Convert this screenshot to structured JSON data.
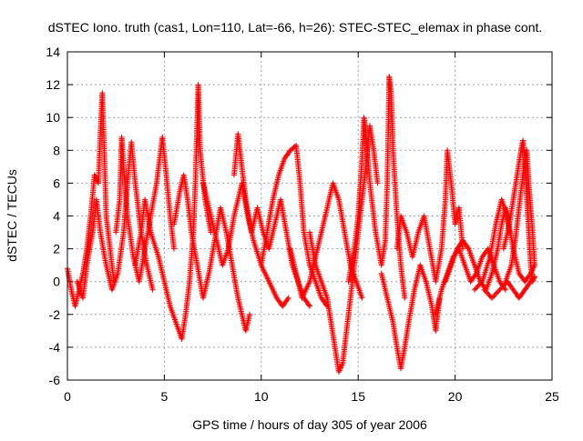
{
  "chart_data": {
    "type": "scatter",
    "title": "dSTEC Iono. truth (cas1, Lon=110, Lat=-66, h=26): STEC-STEC_elemax in phase cont.",
    "xlabel": "GPS time / hours of day 305 of year 2006",
    "ylabel": "dSTEC  / TECUs",
    "xlim": [
      0,
      25
    ],
    "ylim": [
      -6,
      14
    ],
    "xticks": [
      0,
      5,
      10,
      15,
      20,
      25
    ],
    "yticks": [
      -6,
      -4,
      -2,
      0,
      2,
      4,
      6,
      8,
      10,
      12,
      14
    ],
    "grid": true,
    "marker": "+",
    "series": [
      {
        "name": "dSTEC",
        "color": "#ff0000",
        "arcs": [
          [
            [
              0.0,
              0.8
            ],
            [
              0.2,
              -0.5
            ],
            [
              0.4,
              -1.5
            ],
            [
              0.6,
              -0.5
            ],
            [
              0.8,
              0.5
            ],
            [
              1.0,
              2.0
            ],
            [
              1.2,
              4.0
            ],
            [
              1.4,
              6.5
            ],
            [
              1.6,
              6.0
            ],
            [
              1.7,
              9.0
            ],
            [
              1.8,
              11.5
            ],
            [
              1.9,
              8.0
            ],
            [
              2.0,
              4.0
            ],
            [
              2.2,
              2.0
            ],
            [
              2.4,
              0.0
            ]
          ],
          [
            [
              0.5,
              0.0
            ],
            [
              0.8,
              -1.0
            ],
            [
              1.0,
              1.0
            ],
            [
              1.3,
              3.0
            ],
            [
              1.5,
              5.0
            ],
            [
              1.7,
              3.0
            ],
            [
              2.0,
              1.0
            ],
            [
              2.3,
              -0.5
            ],
            [
              2.6,
              0.5
            ],
            [
              2.9,
              3.0
            ],
            [
              3.1,
              6.0
            ],
            [
              3.3,
              8.5
            ],
            [
              3.5,
              6.0
            ],
            [
              3.8,
              3.0
            ],
            [
              4.1,
              1.0
            ],
            [
              4.4,
              -0.5
            ]
          ],
          [
            [
              2.5,
              3.0
            ],
            [
              2.7,
              5.0
            ],
            [
              2.8,
              8.8
            ],
            [
              2.9,
              7.0
            ],
            [
              3.1,
              4.0
            ],
            [
              3.4,
              1.5
            ],
            [
              3.7,
              0.0
            ],
            [
              4.0,
              2.0
            ],
            [
              4.3,
              4.0
            ],
            [
              4.6,
              6.0
            ],
            [
              4.9,
              8.8
            ],
            [
              5.1,
              6.5
            ],
            [
              5.3,
              4.0
            ],
            [
              5.5,
              2.0
            ]
          ],
          [
            [
              3.5,
              1.0
            ],
            [
              3.8,
              3.0
            ],
            [
              4.0,
              5.0
            ],
            [
              4.3,
              3.0
            ],
            [
              4.7,
              1.5
            ],
            [
              5.0,
              0.0
            ],
            [
              5.3,
              -1.5
            ],
            [
              5.6,
              -2.5
            ],
            [
              5.9,
              -3.5
            ],
            [
              6.1,
              -2.0
            ],
            [
              6.3,
              0.0
            ],
            [
              6.5,
              3.0
            ],
            [
              6.6,
              6.0
            ],
            [
              6.7,
              10.0
            ],
            [
              6.75,
              12.0
            ],
            [
              6.85,
              8.0
            ],
            [
              7.1,
              5.0
            ],
            [
              7.4,
              3.0
            ]
          ],
          [
            [
              5.5,
              3.5
            ],
            [
              5.8,
              5.5
            ],
            [
              6.0,
              6.5
            ],
            [
              6.2,
              5.0
            ],
            [
              6.4,
              3.0
            ],
            [
              6.7,
              1.0
            ],
            [
              7.0,
              -1.0
            ],
            [
              7.3,
              0.5
            ],
            [
              7.6,
              2.5
            ],
            [
              7.9,
              4.5
            ],
            [
              8.2,
              3.0
            ],
            [
              8.5,
              1.0
            ],
            [
              8.8,
              -1.0
            ],
            [
              9.0,
              -2.0
            ],
            [
              9.2,
              -3.0
            ],
            [
              9.4,
              -2.0
            ]
          ],
          [
            [
              7.0,
              6.0
            ],
            [
              7.3,
              4.5
            ],
            [
              7.7,
              2.5
            ],
            [
              8.0,
              1.0
            ],
            [
              8.3,
              2.0
            ],
            [
              8.6,
              4.0
            ],
            [
              9.0,
              6.0
            ],
            [
              9.3,
              4.0
            ],
            [
              9.6,
              2.5
            ],
            [
              10.0,
              1.0
            ],
            [
              10.4,
              0.0
            ],
            [
              10.8,
              -1.0
            ],
            [
              11.1,
              -1.5
            ],
            [
              11.4,
              -1.0
            ]
          ],
          [
            [
              8.6,
              6.5
            ],
            [
              8.8,
              9.0
            ],
            [
              9.0,
              7.0
            ],
            [
              9.2,
              5.0
            ],
            [
              9.5,
              3.0
            ],
            [
              9.8,
              4.5
            ],
            [
              10.1,
              3.0
            ],
            [
              10.4,
              2.0
            ],
            [
              10.7,
              3.5
            ],
            [
              11.0,
              5.0
            ],
            [
              11.3,
              3.0
            ],
            [
              11.6,
              1.0
            ],
            [
              11.9,
              0.0
            ],
            [
              12.2,
              -1.0
            ],
            [
              12.5,
              -1.5
            ]
          ],
          [
            [
              10.0,
              1.0
            ],
            [
              10.3,
              3.0
            ],
            [
              10.6,
              5.0
            ],
            [
              10.9,
              6.5
            ],
            [
              11.2,
              7.5
            ],
            [
              11.5,
              8.0
            ],
            [
              11.8,
              8.3
            ],
            [
              12.0,
              6.0
            ],
            [
              12.2,
              3.0
            ],
            [
              12.5,
              1.0
            ],
            [
              12.8,
              0.0
            ],
            [
              13.1,
              -1.0
            ],
            [
              13.4,
              -1.5
            ]
          ],
          [
            [
              11.5,
              2.0
            ],
            [
              11.8,
              0.5
            ],
            [
              12.1,
              -1.0
            ],
            [
              12.5,
              0.0
            ],
            [
              12.8,
              1.5
            ],
            [
              13.1,
              3.0
            ],
            [
              13.4,
              4.5
            ],
            [
              13.7,
              6.0
            ],
            [
              14.0,
              5.0
            ],
            [
              14.3,
              3.0
            ],
            [
              14.6,
              1.0
            ],
            [
              14.9,
              0.0
            ],
            [
              15.2,
              -1.0
            ]
          ],
          [
            [
              12.5,
              3.0
            ],
            [
              12.8,
              1.0
            ],
            [
              13.1,
              0.0
            ],
            [
              13.4,
              -1.0
            ],
            [
              13.6,
              -2.5
            ],
            [
              13.8,
              -4.0
            ],
            [
              14.0,
              -5.5
            ],
            [
              14.2,
              -5.0
            ],
            [
              14.4,
              -3.0
            ],
            [
              14.6,
              -1.0
            ],
            [
              14.8,
              1.0
            ],
            [
              15.0,
              3.0
            ],
            [
              15.2,
              5.0
            ],
            [
              15.4,
              7.0
            ],
            [
              15.6,
              9.5
            ],
            [
              15.8,
              8.0
            ],
            [
              16.0,
              6.0
            ]
          ],
          [
            [
              14.5,
              0.0
            ],
            [
              14.8,
              2.0
            ],
            [
              15.0,
              4.0
            ],
            [
              15.2,
              7.5
            ],
            [
              15.3,
              10.0
            ],
            [
              15.4,
              9.0
            ],
            [
              15.6,
              6.0
            ],
            [
              15.9,
              3.0
            ],
            [
              16.2,
              1.0
            ],
            [
              16.4,
              2.5
            ],
            [
              16.5,
              6.0
            ],
            [
              16.55,
              9.0
            ],
            [
              16.6,
              12.5
            ],
            [
              16.7,
              11.5
            ],
            [
              16.8,
              8.0
            ],
            [
              17.0,
              4.0
            ],
            [
              17.2,
              1.0
            ],
            [
              17.4,
              -1.0
            ]
          ],
          [
            [
              16.2,
              0.5
            ],
            [
              16.5,
              -1.0
            ],
            [
              16.8,
              -2.5
            ],
            [
              17.0,
              -4.0
            ],
            [
              17.2,
              -5.3
            ],
            [
              17.4,
              -4.0
            ],
            [
              17.6,
              -2.5
            ],
            [
              17.9,
              -0.5
            ],
            [
              18.2,
              1.0
            ],
            [
              18.5,
              0.0
            ],
            [
              18.8,
              -1.5
            ],
            [
              19.0,
              -3.0
            ],
            [
              19.2,
              -1.0
            ]
          ],
          [
            [
              17.0,
              2.0
            ],
            [
              17.2,
              4.0
            ],
            [
              17.5,
              3.0
            ],
            [
              17.8,
              1.5
            ],
            [
              18.1,
              3.0
            ],
            [
              18.4,
              4.0
            ],
            [
              18.7,
              2.0
            ],
            [
              19.0,
              0.0
            ],
            [
              19.3,
              2.0
            ],
            [
              19.5,
              5.0
            ],
            [
              19.6,
              8.0
            ],
            [
              19.8,
              6.0
            ],
            [
              20.0,
              3.5
            ],
            [
              20.2,
              4.5
            ],
            [
              20.4,
              2.0
            ]
          ],
          [
            [
              19.0,
              -2.0
            ],
            [
              19.3,
              -0.5
            ],
            [
              19.6,
              0.5
            ],
            [
              19.9,
              1.5
            ],
            [
              20.2,
              2.0
            ],
            [
              20.5,
              1.0
            ],
            [
              20.8,
              0.0
            ],
            [
              21.1,
              0.5
            ],
            [
              21.4,
              1.5
            ],
            [
              21.7,
              2.0
            ],
            [
              22.0,
              1.0
            ],
            [
              22.3,
              0.0
            ],
            [
              22.6,
              -0.5
            ]
          ],
          [
            [
              19.5,
              0.0
            ],
            [
              19.8,
              1.0
            ],
            [
              20.1,
              2.0
            ],
            [
              20.4,
              2.5
            ],
            [
              20.7,
              2.0
            ],
            [
              21.0,
              1.0
            ],
            [
              21.3,
              0.0
            ],
            [
              21.6,
              -0.5
            ],
            [
              21.9,
              0.5
            ],
            [
              22.2,
              2.0
            ],
            [
              22.4,
              3.5
            ],
            [
              22.6,
              4.5
            ],
            [
              22.8,
              3.0
            ]
          ],
          [
            [
              21.0,
              -0.5
            ],
            [
              21.4,
              0.0
            ],
            [
              21.8,
              1.5
            ],
            [
              22.1,
              3.5
            ],
            [
              22.4,
              5.0
            ],
            [
              22.7,
              4.0
            ],
            [
              23.0,
              2.0
            ],
            [
              23.3,
              0.5
            ],
            [
              23.6,
              0.0
            ],
            [
              23.9,
              0.5
            ],
            [
              24.1,
              1.0
            ]
          ],
          [
            [
              21.5,
              -0.5
            ],
            [
              21.9,
              -1.0
            ],
            [
              22.3,
              -0.5
            ],
            [
              22.7,
              0.0
            ],
            [
              23.0,
              -0.5
            ],
            [
              23.3,
              -1.0
            ],
            [
              23.6,
              -0.5
            ],
            [
              23.9,
              0.0
            ],
            [
              24.1,
              0.3
            ]
          ],
          [
            [
              22.5,
              2.0
            ],
            [
              22.8,
              3.5
            ],
            [
              23.0,
              5.0
            ],
            [
              23.2,
              6.5
            ],
            [
              23.4,
              8.0
            ],
            [
              23.5,
              8.6
            ],
            [
              23.6,
              7.5
            ],
            [
              23.7,
              5.0
            ],
            [
              23.8,
              3.0
            ],
            [
              23.9,
              1.0
            ],
            [
              24.0,
              0.0
            ],
            [
              24.1,
              0.3
            ]
          ],
          [
            [
              22.6,
              0.0
            ],
            [
              22.9,
              1.0
            ],
            [
              23.1,
              2.5
            ],
            [
              23.3,
              4.5
            ],
            [
              23.5,
              6.5
            ],
            [
              23.7,
              8.0
            ],
            [
              23.8,
              6.0
            ],
            [
              24.0,
              3.0
            ],
            [
              24.1,
              1.0
            ]
          ]
        ]
      }
    ]
  }
}
